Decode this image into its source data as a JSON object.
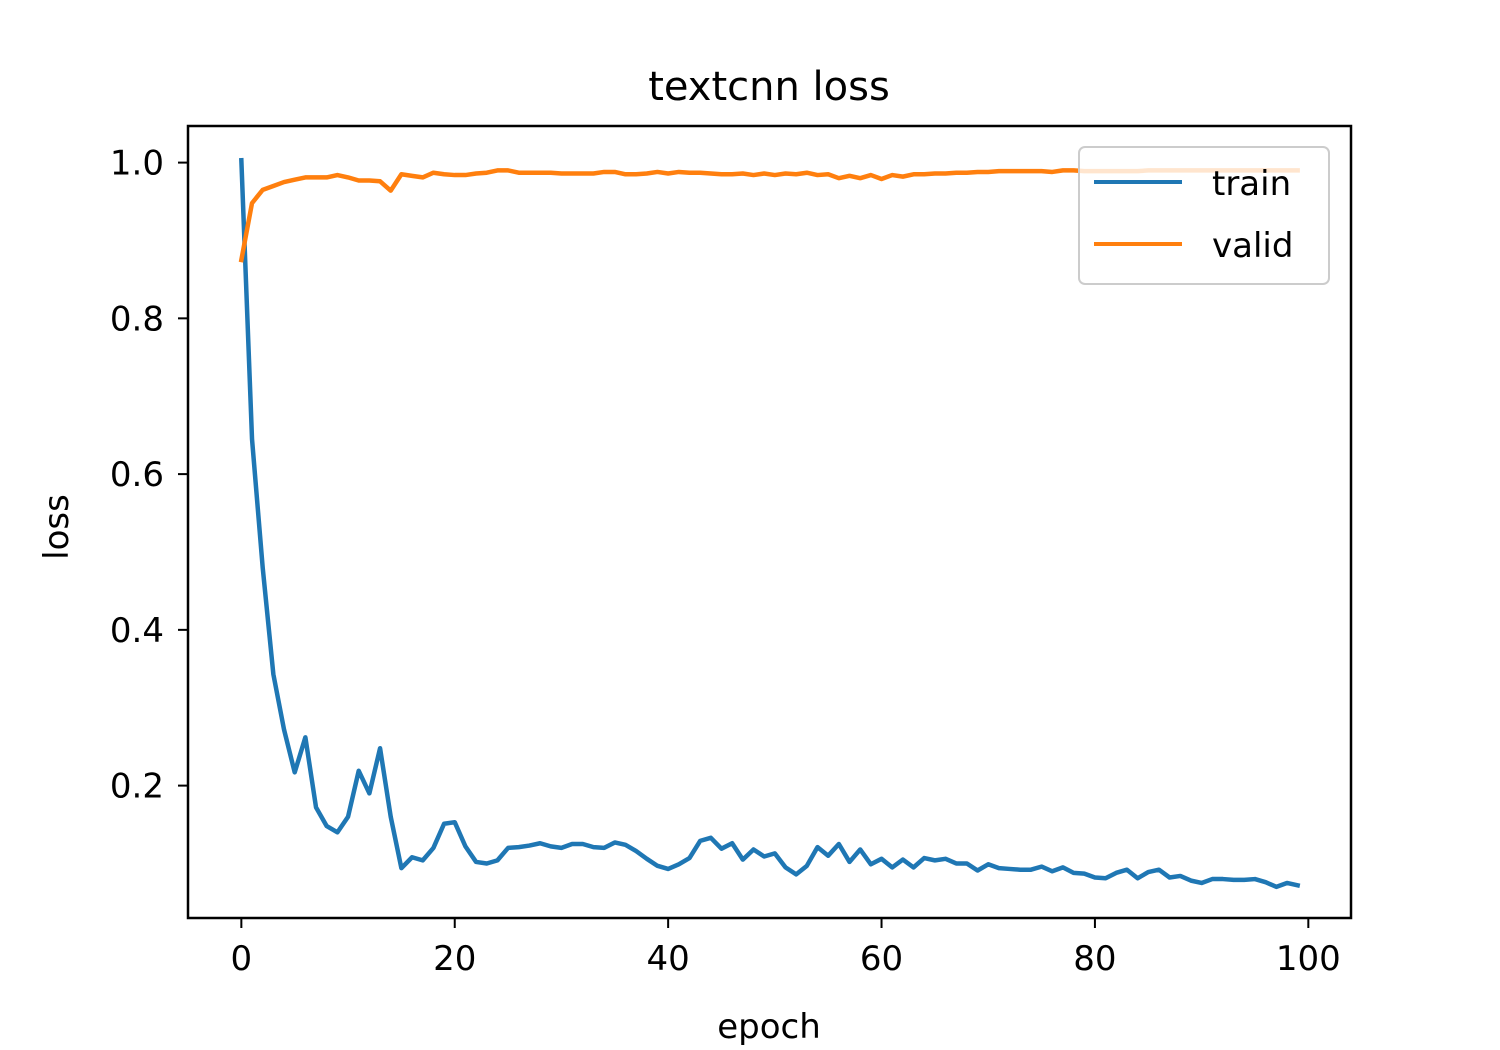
{
  "chart_data": {
    "type": "line",
    "title": "textcnn loss",
    "xlabel": "epoch",
    "ylabel": "loss",
    "xlim": [
      -5,
      104
    ],
    "ylim": [
      0.03,
      1.047
    ],
    "xticks": [
      0,
      20,
      40,
      60,
      80,
      100
    ],
    "xtick_labels": [
      "0",
      "20",
      "40",
      "60",
      "80",
      "100"
    ],
    "yticks": [
      0.2,
      0.4,
      0.6,
      0.8,
      1.0
    ],
    "ytick_labels": [
      "0.2",
      "0.4",
      "0.6",
      "0.8",
      "1.0"
    ],
    "grid": false,
    "legend": {
      "position": "upper-right",
      "entries": [
        "train",
        "valid"
      ]
    },
    "x": [
      0,
      1,
      2,
      3,
      4,
      5,
      6,
      7,
      8,
      9,
      10,
      11,
      12,
      13,
      14,
      15,
      16,
      17,
      18,
      19,
      20,
      21,
      22,
      23,
      24,
      25,
      26,
      27,
      28,
      29,
      30,
      31,
      32,
      33,
      34,
      35,
      36,
      37,
      38,
      39,
      40,
      41,
      42,
      43,
      44,
      45,
      46,
      47,
      48,
      49,
      50,
      51,
      52,
      53,
      54,
      55,
      56,
      57,
      58,
      59,
      60,
      61,
      62,
      63,
      64,
      65,
      66,
      67,
      68,
      69,
      70,
      71,
      72,
      73,
      74,
      75,
      76,
      77,
      78,
      79,
      80,
      81,
      82,
      83,
      84,
      85,
      86,
      87,
      88,
      89,
      90,
      91,
      92,
      93,
      94,
      95,
      96,
      97,
      98,
      99
    ],
    "series": [
      {
        "name": "train",
        "color": "#1f77b4",
        "values": [
          1.003,
          0.645,
          0.48,
          0.343,
          0.272,
          0.217,
          0.262,
          0.172,
          0.148,
          0.14,
          0.16,
          0.219,
          0.19,
          0.248,
          0.16,
          0.094,
          0.108,
          0.104,
          0.12,
          0.151,
          0.153,
          0.122,
          0.102,
          0.1,
          0.104,
          0.12,
          0.121,
          0.123,
          0.126,
          0.122,
          0.12,
          0.125,
          0.125,
          0.121,
          0.12,
          0.127,
          0.124,
          0.116,
          0.106,
          0.097,
          0.093,
          0.099,
          0.107,
          0.129,
          0.133,
          0.119,
          0.126,
          0.105,
          0.118,
          0.109,
          0.113,
          0.095,
          0.086,
          0.097,
          0.121,
          0.11,
          0.125,
          0.102,
          0.118,
          0.099,
          0.106,
          0.095,
          0.105,
          0.095,
          0.107,
          0.104,
          0.106,
          0.1,
          0.1,
          0.091,
          0.099,
          0.094,
          0.093,
          0.092,
          0.092,
          0.096,
          0.09,
          0.095,
          0.088,
          0.087,
          0.082,
          0.081,
          0.088,
          0.092,
          0.081,
          0.089,
          0.092,
          0.082,
          0.084,
          0.078,
          0.075,
          0.08,
          0.08,
          0.079,
          0.079,
          0.08,
          0.076,
          0.07,
          0.075,
          0.072
        ]
      },
      {
        "name": "valid",
        "color": "#ff7f0e",
        "values": [
          0.875,
          0.948,
          0.965,
          0.97,
          0.975,
          0.978,
          0.981,
          0.981,
          0.981,
          0.984,
          0.981,
          0.977,
          0.977,
          0.976,
          0.964,
          0.985,
          0.983,
          0.981,
          0.987,
          0.985,
          0.984,
          0.984,
          0.986,
          0.987,
          0.99,
          0.99,
          0.987,
          0.987,
          0.987,
          0.987,
          0.986,
          0.986,
          0.986,
          0.986,
          0.988,
          0.988,
          0.985,
          0.985,
          0.986,
          0.988,
          0.986,
          0.988,
          0.987,
          0.987,
          0.986,
          0.985,
          0.985,
          0.986,
          0.984,
          0.986,
          0.984,
          0.986,
          0.985,
          0.987,
          0.984,
          0.985,
          0.98,
          0.983,
          0.98,
          0.984,
          0.979,
          0.984,
          0.982,
          0.985,
          0.985,
          0.986,
          0.986,
          0.987,
          0.987,
          0.988,
          0.988,
          0.989,
          0.989,
          0.989,
          0.989,
          0.989,
          0.988,
          0.99,
          0.99,
          0.989,
          0.989,
          0.989,
          0.989,
          0.989,
          0.989,
          0.99,
          0.99,
          0.99,
          0.99,
          0.99,
          0.99,
          0.99,
          0.99,
          0.99,
          0.99,
          0.99,
          0.99,
          0.99,
          0.99,
          0.99
        ]
      }
    ]
  }
}
